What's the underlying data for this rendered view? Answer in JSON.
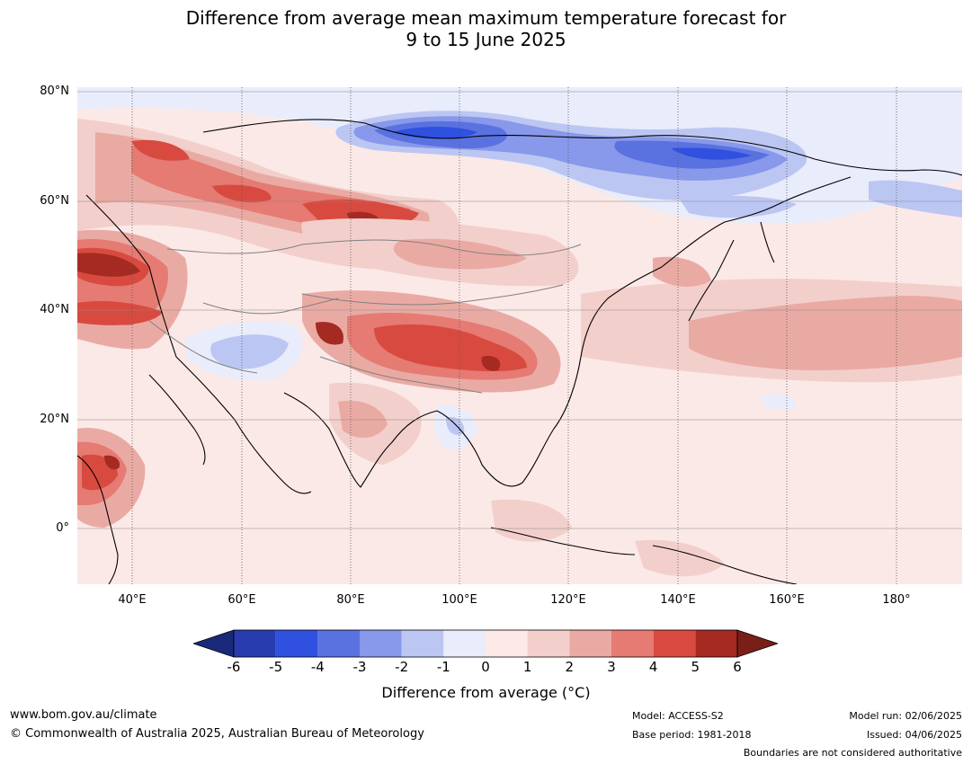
{
  "title": {
    "line1": "Difference from average mean maximum temperature forecast for",
    "line2": "9 to 15 June 2025"
  },
  "map": {
    "lat_labels": [
      "80°N",
      "60°N",
      "40°N",
      "20°N",
      "0°"
    ],
    "lon_labels": [
      "40°E",
      "60°E",
      "80°E",
      "100°E",
      "120°E",
      "140°E",
      "160°E",
      "180°"
    ],
    "background_color": "#fbe9e7"
  },
  "colorbar": {
    "ticks": [
      "-6",
      "-5",
      "-4",
      "-3",
      "-2",
      "-1",
      "0",
      "1",
      "2",
      "3",
      "4",
      "5",
      "6"
    ],
    "colors": [
      "#1a2a7a",
      "#283cb0",
      "#3050e0",
      "#5a72e0",
      "#8898ea",
      "#bcc6f2",
      "#e8ecfb",
      "#fde9e7",
      "#f3cfcb",
      "#eaaaa4",
      "#e57b72",
      "#d84a40",
      "#a52a22",
      "#7a1e18"
    ],
    "label": "Difference from average (°C)"
  },
  "footer": {
    "website": "www.bom.gov.au/climate",
    "copyright": "© Commonwealth of Australia 2025, Australian Bureau of Meteorology",
    "model": "Model: ACCESS-S2",
    "base_period": "Base period: 1981-2018",
    "model_run": "Model run: 02/06/2025",
    "issued": "Issued: 04/06/2025",
    "disclaimer": "Boundaries are not considered authoritative"
  }
}
